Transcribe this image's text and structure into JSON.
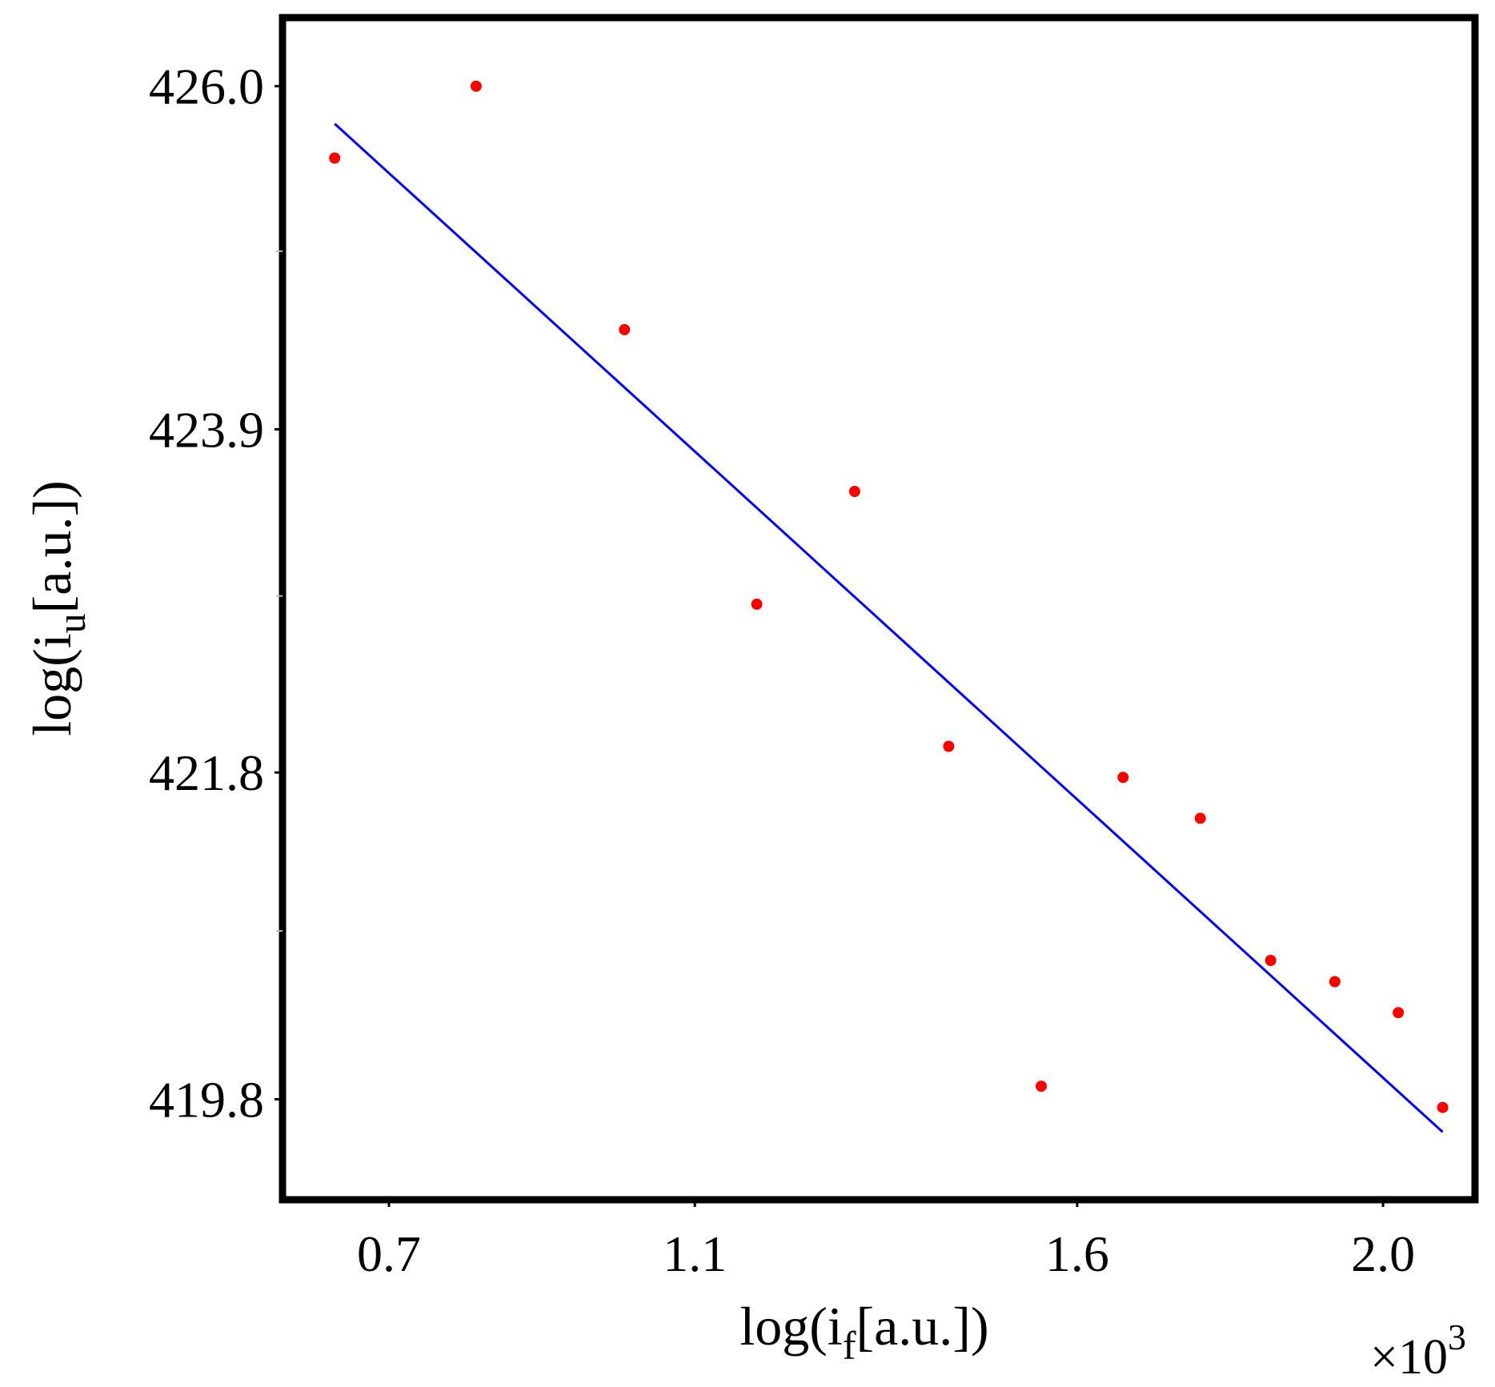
{
  "chart_data": {
    "type": "scatter",
    "title": "",
    "xlabel": {
      "base": "log(i",
      "sub": "f",
      "rest": "[a.u.])"
    },
    "ylabel": {
      "base": "log(i",
      "sub": "u",
      "rest": "[a.u.])"
    },
    "x_multiplier": {
      "base": "×10",
      "sup": "3"
    },
    "xlim": [
      0.565,
      2.115
    ],
    "ylim": [
      419.21,
      426.4
    ],
    "xticks": [
      0.7,
      1.1,
      1.6,
      2.0
    ],
    "xtick_labels": [
      "0.7",
      "1.1",
      "1.6",
      "2.0"
    ],
    "yticks": [
      419.8,
      421.8,
      423.9,
      426.0
    ],
    "ytick_labels": [
      "419.8",
      "421.8",
      "423.9",
      "426.0"
    ],
    "y_minor_ticks": [
      424.99,
      422.88,
      420.83
    ],
    "grid": false,
    "legend": "none",
    "series": [
      {
        "kind": "points",
        "color": "#ff0000",
        "x": [
          0.629,
          0.814,
          1.008,
          1.181,
          1.309,
          1.432,
          1.553,
          1.66,
          1.761,
          1.853,
          1.937,
          2.02,
          2.078
        ],
        "y": [
          425.56,
          426.0,
          424.51,
          422.83,
          423.52,
          421.96,
          419.88,
          421.77,
          421.52,
          420.65,
          420.52,
          420.33,
          419.75
        ]
      },
      {
        "kind": "fit-line",
        "color": "#0000ff",
        "x": [
          0.629,
          2.078
        ],
        "y": [
          425.77,
          419.6
        ]
      }
    ]
  }
}
